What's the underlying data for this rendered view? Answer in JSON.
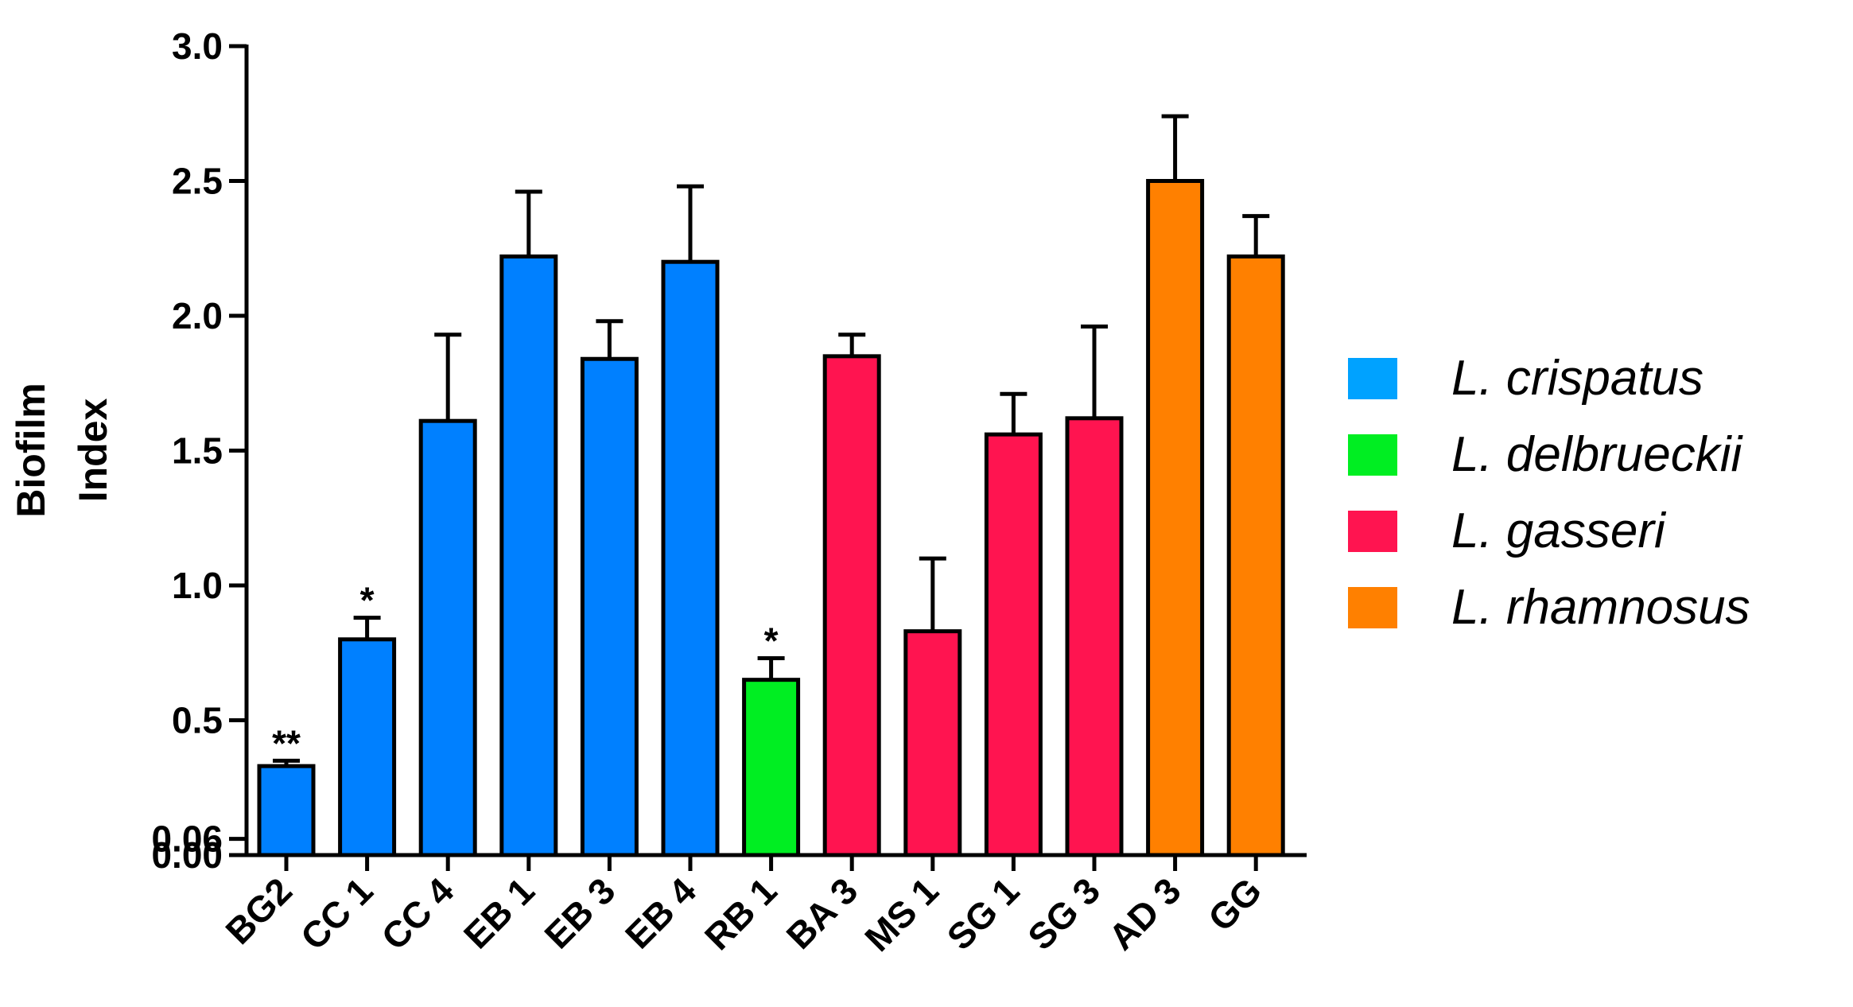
{
  "chart_data": {
    "type": "bar",
    "title": "",
    "ylabel_lines": [
      "Biofilm",
      "Index"
    ],
    "xlabel": "",
    "ylim": [
      0,
      3.0
    ],
    "yticks": [
      0.0,
      0.06,
      0.5,
      1.0,
      1.5,
      2.0,
      2.5,
      3.0
    ],
    "ytick_labels": [
      "0.00",
      "0.06",
      "0.5",
      "1.0",
      "1.5",
      "2.0",
      "2.5",
      "3.0"
    ],
    "categories": [
      "BG2",
      "CC 1",
      "CC 4",
      "EB 1",
      "EB 3",
      "EB 4",
      "RB 1",
      "BA 3",
      "MS 1",
      "SG 1",
      "SG 3",
      "AD 3",
      "GG"
    ],
    "values": [
      0.33,
      0.8,
      1.61,
      2.22,
      1.84,
      2.2,
      0.65,
      1.85,
      0.83,
      1.56,
      1.62,
      2.5,
      2.22
    ],
    "errors": [
      0.02,
      0.08,
      0.32,
      0.24,
      0.14,
      0.28,
      0.08,
      0.08,
      0.27,
      0.15,
      0.34,
      0.24,
      0.15
    ],
    "groups": [
      "L. crispatus",
      "L. crispatus",
      "L. crispatus",
      "L. crispatus",
      "L. crispatus",
      "L. crispatus",
      "L. delbrueckii",
      "L. gasseri",
      "L. gasseri",
      "L. gasseri",
      "L. gasseri",
      "L. rhamnosus",
      "L. rhamnosus"
    ],
    "annotations": [
      "**",
      "*",
      "",
      "",
      "",
      "",
      "*",
      "",
      "",
      "",
      "",
      "",
      ""
    ],
    "legend": [
      {
        "name": "L. crispatus",
        "color": "#00a2ff",
        "bar_color": "#0080ff"
      },
      {
        "name": "L. delbrueckii",
        "color": "#00ee22",
        "bar_color": "#00ee22"
      },
      {
        "name": "L. gasseri",
        "color": "#ff1450",
        "bar_color": "#ff1450"
      },
      {
        "name": "L. rhamnosus",
        "color": "#ff8000",
        "bar_color": "#ff8000"
      }
    ],
    "legend_position": "right",
    "grid": false
  }
}
